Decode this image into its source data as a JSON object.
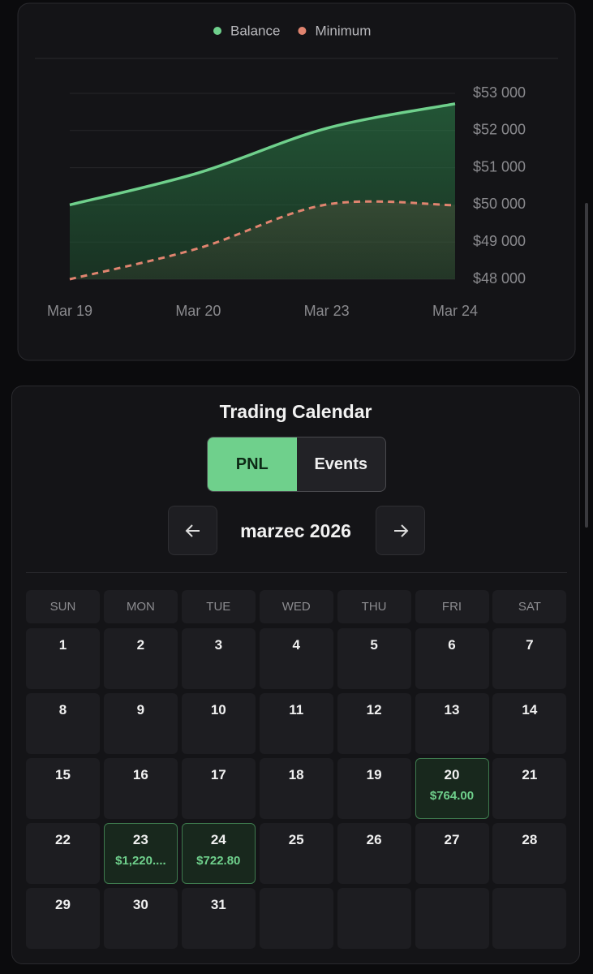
{
  "chart_data": {
    "type": "line",
    "categories": [
      "Mar 19",
      "Mar 20",
      "Mar 23",
      "Mar 24"
    ],
    "series": [
      {
        "name": "Balance",
        "color": "#6fd08c",
        "values": [
          50000,
          50860,
          52060,
          52720
        ]
      },
      {
        "name": "Minimum",
        "color": "#e0846f",
        "values": [
          48000,
          48830,
          50010,
          49990
        ]
      }
    ],
    "ylim": [
      48000,
      53000
    ],
    "yticks": [
      {
        "value": 48000,
        "label": "$48 000"
      },
      {
        "value": 49000,
        "label": "$49 000"
      },
      {
        "value": 50000,
        "label": "$50 000"
      },
      {
        "value": 51000,
        "label": "$51 000"
      },
      {
        "value": 52000,
        "label": "$52 000"
      },
      {
        "value": 53000,
        "label": "$53 000"
      }
    ],
    "grid": true,
    "legend": "top"
  },
  "calendar": {
    "title": "Trading Calendar",
    "tabs": [
      "PNL",
      "Events"
    ],
    "active_tab": 0,
    "month": "marzec 2026",
    "weekdays": [
      "SUN",
      "MON",
      "TUE",
      "WED",
      "THU",
      "FRI",
      "SAT"
    ],
    "weeks": [
      [
        1,
        2,
        3,
        4,
        5,
        6,
        7
      ],
      [
        8,
        9,
        10,
        11,
        12,
        13,
        14
      ],
      [
        15,
        16,
        17,
        18,
        19,
        20,
        21
      ],
      [
        22,
        23,
        24,
        25,
        26,
        27,
        28
      ],
      [
        29,
        30,
        31,
        null,
        null,
        null,
        null
      ]
    ],
    "pnl": [
      {
        "day": 20,
        "label": "$764.00"
      },
      {
        "day": 23,
        "label": "$1,220...."
      },
      {
        "day": 24,
        "label": "$722.80"
      }
    ]
  }
}
